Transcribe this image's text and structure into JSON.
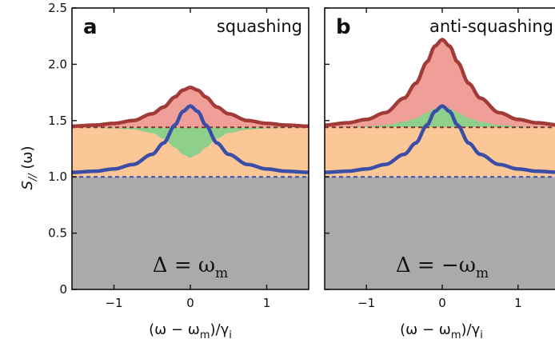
{
  "figure": {
    "ylabel_main": "S",
    "ylabel_sub": "//",
    "ylabel_suffix": " (ω)",
    "xlabel_pre": "(ω − ω",
    "xlabel_sub1": "m",
    "xlabel_mid": ")/γ",
    "xlabel_sub2": "i"
  },
  "chart_data": [
    {
      "type": "area",
      "panel_letter": "a",
      "title": "squashing",
      "condition_main": "Δ = ω",
      "condition_sub": "m",
      "xlim": [
        -1.55,
        1.55
      ],
      "ylim": [
        0,
        2.5
      ],
      "xticks": [
        -1,
        0,
        1
      ],
      "xtick_labels": [
        "−1",
        "0",
        "1"
      ],
      "yticks": [
        0,
        0.5,
        1.0,
        1.5,
        2.0,
        2.5
      ],
      "ytick_labels": [
        "0",
        "0.5",
        "1.0",
        "1.5",
        "2.0",
        "2.5"
      ],
      "baselines": {
        "lower_dashed": 1.0,
        "upper_dashed": 1.44
      },
      "series": [
        {
          "name": "",
          "color": "#a23a38",
          "x": [
            -1.55,
            -1.25,
            -1.0,
            -0.75,
            -0.5,
            -0.35,
            -0.2,
            -0.1,
            0.0,
            0.1,
            0.2,
            0.35,
            0.5,
            0.75,
            1.0,
            1.25,
            1.55
          ],
          "y": [
            1.45,
            1.46,
            1.475,
            1.5,
            1.56,
            1.62,
            1.71,
            1.77,
            1.795,
            1.77,
            1.71,
            1.62,
            1.56,
            1.5,
            1.475,
            1.46,
            1.45
          ]
        },
        {
          "name": "",
          "color": "#3a4ea8",
          "x": [
            -1.55,
            -1.25,
            -1.0,
            -0.75,
            -0.5,
            -0.35,
            -0.2,
            -0.1,
            0.0,
            0.1,
            0.2,
            0.35,
            0.5,
            0.75,
            1.0,
            1.25,
            1.55
          ],
          "y": [
            1.04,
            1.05,
            1.07,
            1.11,
            1.2,
            1.3,
            1.46,
            1.58,
            1.63,
            1.58,
            1.46,
            1.3,
            1.2,
            1.11,
            1.07,
            1.05,
            1.04
          ]
        },
        {
          "name": "",
          "color": "#7fc87f",
          "x": [
            -1.55,
            -1.25,
            -1.0,
            -0.75,
            -0.5,
            -0.35,
            -0.2,
            -0.1,
            0.0,
            0.1,
            0.2,
            0.35,
            0.5,
            0.75,
            1.0,
            1.25,
            1.55
          ],
          "y": [
            1.44,
            1.435,
            1.43,
            1.42,
            1.39,
            1.34,
            1.26,
            1.2,
            1.17,
            1.2,
            1.26,
            1.34,
            1.39,
            1.42,
            1.43,
            1.435,
            1.44
          ]
        }
      ]
    },
    {
      "type": "area",
      "panel_letter": "b",
      "title": "anti-squashing",
      "condition_main": "Δ = −ω",
      "condition_sub": "m",
      "xlim": [
        -1.55,
        1.55
      ],
      "ylim": [
        0,
        2.5
      ],
      "xticks": [
        -1,
        0,
        1
      ],
      "xtick_labels": [
        "−1",
        "0",
        "1"
      ],
      "yticks": [
        0,
        0.5,
        1.0,
        1.5,
        2.0,
        2.5
      ],
      "ytick_labels": [],
      "baselines": {
        "lower_dashed": 1.0,
        "upper_dashed": 1.44
      },
      "series": [
        {
          "name": "",
          "color": "#a23a38",
          "x": [
            -1.55,
            -1.25,
            -1.0,
            -0.75,
            -0.5,
            -0.35,
            -0.2,
            -0.1,
            0.0,
            0.1,
            0.2,
            0.35,
            0.5,
            0.75,
            1.0,
            1.25,
            1.55
          ],
          "y": [
            1.46,
            1.48,
            1.51,
            1.57,
            1.7,
            1.83,
            2.02,
            2.16,
            2.22,
            2.16,
            2.02,
            1.83,
            1.7,
            1.57,
            1.51,
            1.48,
            1.46
          ]
        },
        {
          "name": "",
          "color": "#3a4ea8",
          "x": [
            -1.55,
            -1.25,
            -1.0,
            -0.75,
            -0.5,
            -0.35,
            -0.2,
            -0.1,
            0.0,
            0.1,
            0.2,
            0.35,
            0.5,
            0.75,
            1.0,
            1.25,
            1.55
          ],
          "y": [
            1.04,
            1.05,
            1.07,
            1.11,
            1.2,
            1.3,
            1.46,
            1.58,
            1.63,
            1.58,
            1.46,
            1.3,
            1.2,
            1.11,
            1.07,
            1.05,
            1.04
          ]
        },
        {
          "name": "",
          "color": "#7fc87f",
          "x": [
            -1.55,
            -1.25,
            -1.0,
            -0.75,
            -0.5,
            -0.35,
            -0.2,
            -0.1,
            0.0,
            0.1,
            0.2,
            0.35,
            0.5,
            0.75,
            1.0,
            1.25,
            1.55
          ],
          "y": [
            1.44,
            1.445,
            1.45,
            1.46,
            1.49,
            1.52,
            1.57,
            1.61,
            1.63,
            1.61,
            1.57,
            1.52,
            1.49,
            1.46,
            1.45,
            1.445,
            1.44
          ]
        }
      ]
    }
  ]
}
